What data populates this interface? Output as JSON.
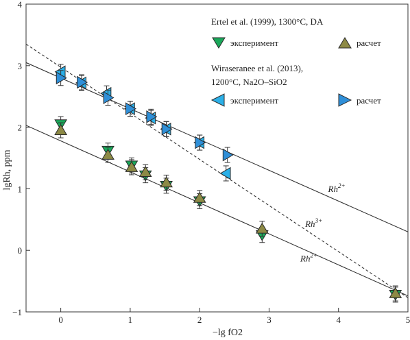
{
  "chart_data": {
    "type": "scatter",
    "xlabel": "−lg fO2",
    "ylabel": "lgRh, ppm",
    "xlim": [
      -0.5,
      5
    ],
    "ylim": [
      -1,
      4
    ],
    "x_ticks": [
      "0",
      "1",
      "2",
      "3",
      "4",
      "5"
    ],
    "y_ticks": [
      "−1",
      "0",
      "1",
      "2",
      "3",
      "4"
    ],
    "grid": false,
    "legend": {
      "group1_title": "Ertel et al. (1999), 1300°C, DA",
      "group2_title_line1": "Wiraseranee et al. (2013),",
      "group2_title_line2": "1200°C, Na2O–SiO2",
      "exp_label": "эксперимент",
      "calc_label": "расчет"
    },
    "series": [
      {
        "name": "эксперимент",
        "group": "Ertel et al. (1999), 1300°C, DA",
        "marker": "triangle-down",
        "color": "#1aa85a",
        "x": [
          0.0,
          0.68,
          1.02,
          1.22,
          1.52,
          2.0,
          2.9,
          4.82
        ],
        "y": [
          2.05,
          1.62,
          1.38,
          1.22,
          1.05,
          0.8,
          0.25,
          -0.72
        ]
      },
      {
        "name": "расчет",
        "group": "Ertel et al. (1999), 1300°C, DA",
        "marker": "triangle-up",
        "color": "#8d8a45",
        "x": [
          0.0,
          0.68,
          1.02,
          1.22,
          1.52,
          2.0,
          2.9,
          4.82
        ],
        "y": [
          1.95,
          1.55,
          1.35,
          1.27,
          1.1,
          0.85,
          0.35,
          -0.7
        ]
      },
      {
        "name": "эксперимент",
        "group": "Wiraseranee et al. (2013), 1200°C, Na2O–SiO2",
        "marker": "triangle-left",
        "color": "#2bb0e8",
        "x": [
          0.0,
          0.3,
          0.66,
          1.0,
          1.3,
          1.52,
          2.0,
          2.38
        ],
        "y": [
          2.9,
          2.72,
          2.55,
          2.3,
          2.15,
          1.97,
          1.75,
          1.25
        ]
      },
      {
        "name": "расчет",
        "group": "Wiraseranee et al. (2013), 1200°C, Na2O–SiO2",
        "marker": "triangle-right",
        "color": "#2f8fd8",
        "x": [
          0.0,
          0.3,
          0.68,
          1.0,
          1.3,
          1.52,
          2.0,
          2.4
        ],
        "y": [
          2.8,
          2.73,
          2.48,
          2.3,
          2.17,
          1.97,
          1.75,
          1.55
        ]
      }
    ],
    "lines": [
      {
        "label": "Rh2+",
        "style": "solid",
        "x": [
          -0.5,
          5.0
        ],
        "y": [
          3.05,
          0.3
        ]
      },
      {
        "label": "Rh3+",
        "style": "dashed",
        "x": [
          -0.5,
          5.0
        ],
        "y": [
          3.35,
          -0.77
        ]
      },
      {
        "label": "Rh2+",
        "style": "solid",
        "x": [
          -0.5,
          5.0
        ],
        "y": [
          2.03,
          -0.74
        ]
      }
    ],
    "line_labels": [
      {
        "base": "Rh",
        "sup": "2+",
        "x": 3.85,
        "y": 0.95
      },
      {
        "base": "Rh",
        "sup": "3+",
        "x": 3.52,
        "y": 0.38
      },
      {
        "base": "Rh",
        "sup": "2+",
        "x": 3.45,
        "y": -0.18
      }
    ]
  }
}
